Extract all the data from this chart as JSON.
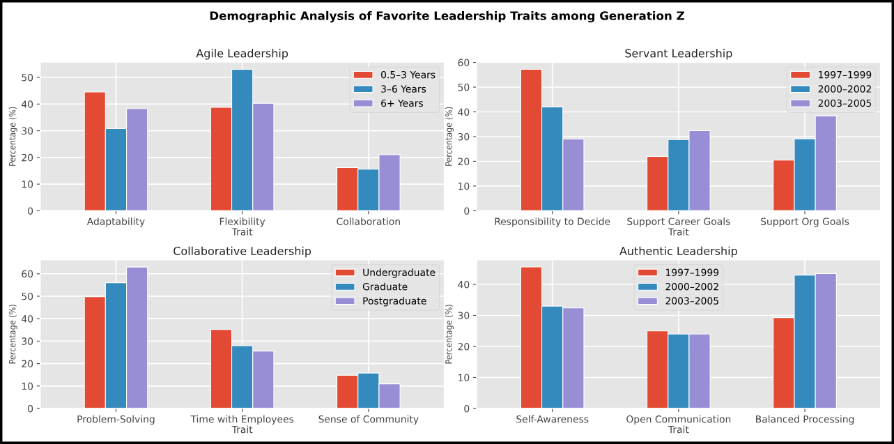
{
  "chart_data": [
    {
      "type": "bar",
      "title": "Agile Leadership",
      "xlabel": "Trait",
      "ylabel": "Percentage (%)",
      "annotations": [
        "Demographic Analysis of Favorite Leadership Traits among Generation Z"
      ],
      "categories": [
        "Adaptability",
        "Flexibility",
        "Collaboration"
      ],
      "series": [
        {
          "name": "0.5–3 Years",
          "color": "#e24a33",
          "values": [
            44.5,
            38.8,
            16.2
          ]
        },
        {
          "name": "3–6 Years",
          "color": "#348abd",
          "values": [
            30.8,
            53,
            15.6
          ]
        },
        {
          "name": "6+ Years",
          "color": "#988ed5",
          "values": [
            38.3,
            40.3,
            21
          ]
        }
      ],
      "ylim": [
        0,
        55.7
      ],
      "yticks": [
        0,
        10,
        20,
        30,
        40,
        50
      ],
      "grid": true,
      "legend": "top right"
    },
    {
      "type": "bar",
      "title": "Servant Leadership",
      "xlabel": "Trait",
      "ylabel": "Percentage (%)",
      "categories": [
        "Responsibility to Decide",
        "Support Career Goals",
        "Support Org Goals"
      ],
      "series": [
        {
          "name": "1997–1999",
          "color": "#e24a33",
          "values": [
            57.2,
            22,
            20.5
          ]
        },
        {
          "name": "2000–2002",
          "color": "#348abd",
          "values": [
            42,
            28.8,
            29.1
          ]
        },
        {
          "name": "2003–2005",
          "color": "#988ed5",
          "values": [
            29,
            32.4,
            38.4
          ]
        }
      ],
      "ylim": [
        0,
        60.1
      ],
      "yticks": [
        0,
        10,
        20,
        30,
        40,
        50,
        60
      ],
      "grid": true,
      "legend": "top right"
    },
    {
      "type": "bar",
      "title": "Collaborative Leadership",
      "xlabel": "Trait",
      "ylabel": "Percentage (%)",
      "categories": [
        "Problem-Solving",
        "Time with Employees",
        "Sense of Community"
      ],
      "series": [
        {
          "name": "Undergraduate",
          "color": "#e24a33",
          "values": [
            49.8,
            35.2,
            14.8
          ]
        },
        {
          "name": "Graduate",
          "color": "#348abd",
          "values": [
            56,
            28,
            15.8
          ]
        },
        {
          "name": "Postgraduate",
          "color": "#988ed5",
          "values": [
            63,
            25.6,
            11
          ]
        }
      ],
      "ylim": [
        0,
        66.2
      ],
      "yticks": [
        0,
        10,
        20,
        30,
        40,
        50,
        60
      ],
      "grid": true,
      "legend": "top right"
    },
    {
      "type": "bar",
      "title": "Authentic Leadership",
      "xlabel": "Trait",
      "ylabel": "Percentage (%)",
      "categories": [
        "Self-Awareness",
        "Open Communication",
        "Balanced Processing"
      ],
      "series": [
        {
          "name": "1997–1999",
          "color": "#e24a33",
          "values": [
            45.6,
            25,
            29.3
          ]
        },
        {
          "name": "2000–2002",
          "color": "#348abd",
          "values": [
            33,
            24,
            43
          ]
        },
        {
          "name": "2003–2005",
          "color": "#988ed5",
          "values": [
            32.4,
            24,
            43.5
          ]
        }
      ],
      "ylim": [
        0,
        47.9
      ],
      "yticks": [
        0,
        10,
        20,
        30,
        40
      ],
      "grid": true,
      "legend": "top"
    }
  ]
}
